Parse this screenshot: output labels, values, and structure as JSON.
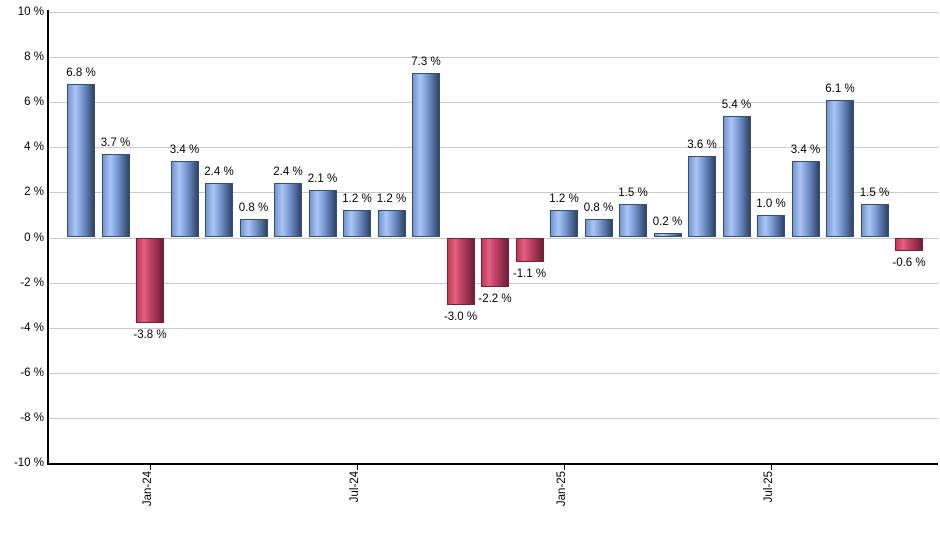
{
  "chart": {
    "background_color": "#ffffff",
    "grid_color": "#c9c9c9",
    "axis_color": "#000000",
    "label_color": "#000000",
    "positive_bar_colors": {
      "edge_left": "#7093d4",
      "highlight": "#aac6f1",
      "mid": "#7e9ed9",
      "edge_right": "#2c4468"
    },
    "negative_bar_colors": {
      "edge_left": "#c83459",
      "highlight": "#e2617f",
      "mid": "#c04065",
      "edge_right": "#6e1f36"
    }
  },
  "chart_data": {
    "type": "bar",
    "title": "",
    "xlabel": "",
    "ylabel": "",
    "ylim": [
      -10,
      10
    ],
    "y_tick_step": 2,
    "grid": true,
    "legend": false,
    "values": [
      6.8,
      3.7,
      -3.8,
      3.4,
      2.4,
      0.8,
      2.4,
      2.1,
      1.2,
      1.2,
      7.3,
      -3.0,
      -2.2,
      -1.1,
      1.2,
      0.8,
      1.5,
      0.2,
      3.6,
      5.4,
      1.0,
      3.4,
      6.1,
      1.5,
      -0.6
    ],
    "bar_labels": [
      "6.8 %",
      "3.7 %",
      "-3.8 %",
      "3.4 %",
      "2.4 %",
      "0.8 %",
      "2.4 %",
      "2.1 %",
      "1.2 %",
      "1.2 %",
      "7.3 %",
      "-3.0 %",
      "-2.2 %",
      "-1.1 %",
      "1.2 %",
      "0.8 %",
      "1.5 %",
      "0.2 %",
      "3.6 %",
      "5.4 %",
      "1.0 %",
      "3.4 %",
      "6.1 %",
      "1.5 %",
      "-0.6 %"
    ],
    "y_tick_labels": [
      "10 %",
      "8 %",
      "6 %",
      "4 %",
      "2 %",
      "0 %",
      "-2 %",
      "-4 %",
      "-6 %",
      "-8 %",
      "-10 %"
    ],
    "y_tick_values": [
      10,
      8,
      6,
      4,
      2,
      0,
      -2,
      -4,
      -6,
      -8,
      -10
    ],
    "x_ticks": [
      {
        "bar_index": 2,
        "label": "Jan-24"
      },
      {
        "bar_index": 8,
        "label": "Jul-24"
      },
      {
        "bar_index": 14,
        "label": "Jan-25"
      },
      {
        "bar_index": 20,
        "label": "Jul-25"
      }
    ]
  }
}
